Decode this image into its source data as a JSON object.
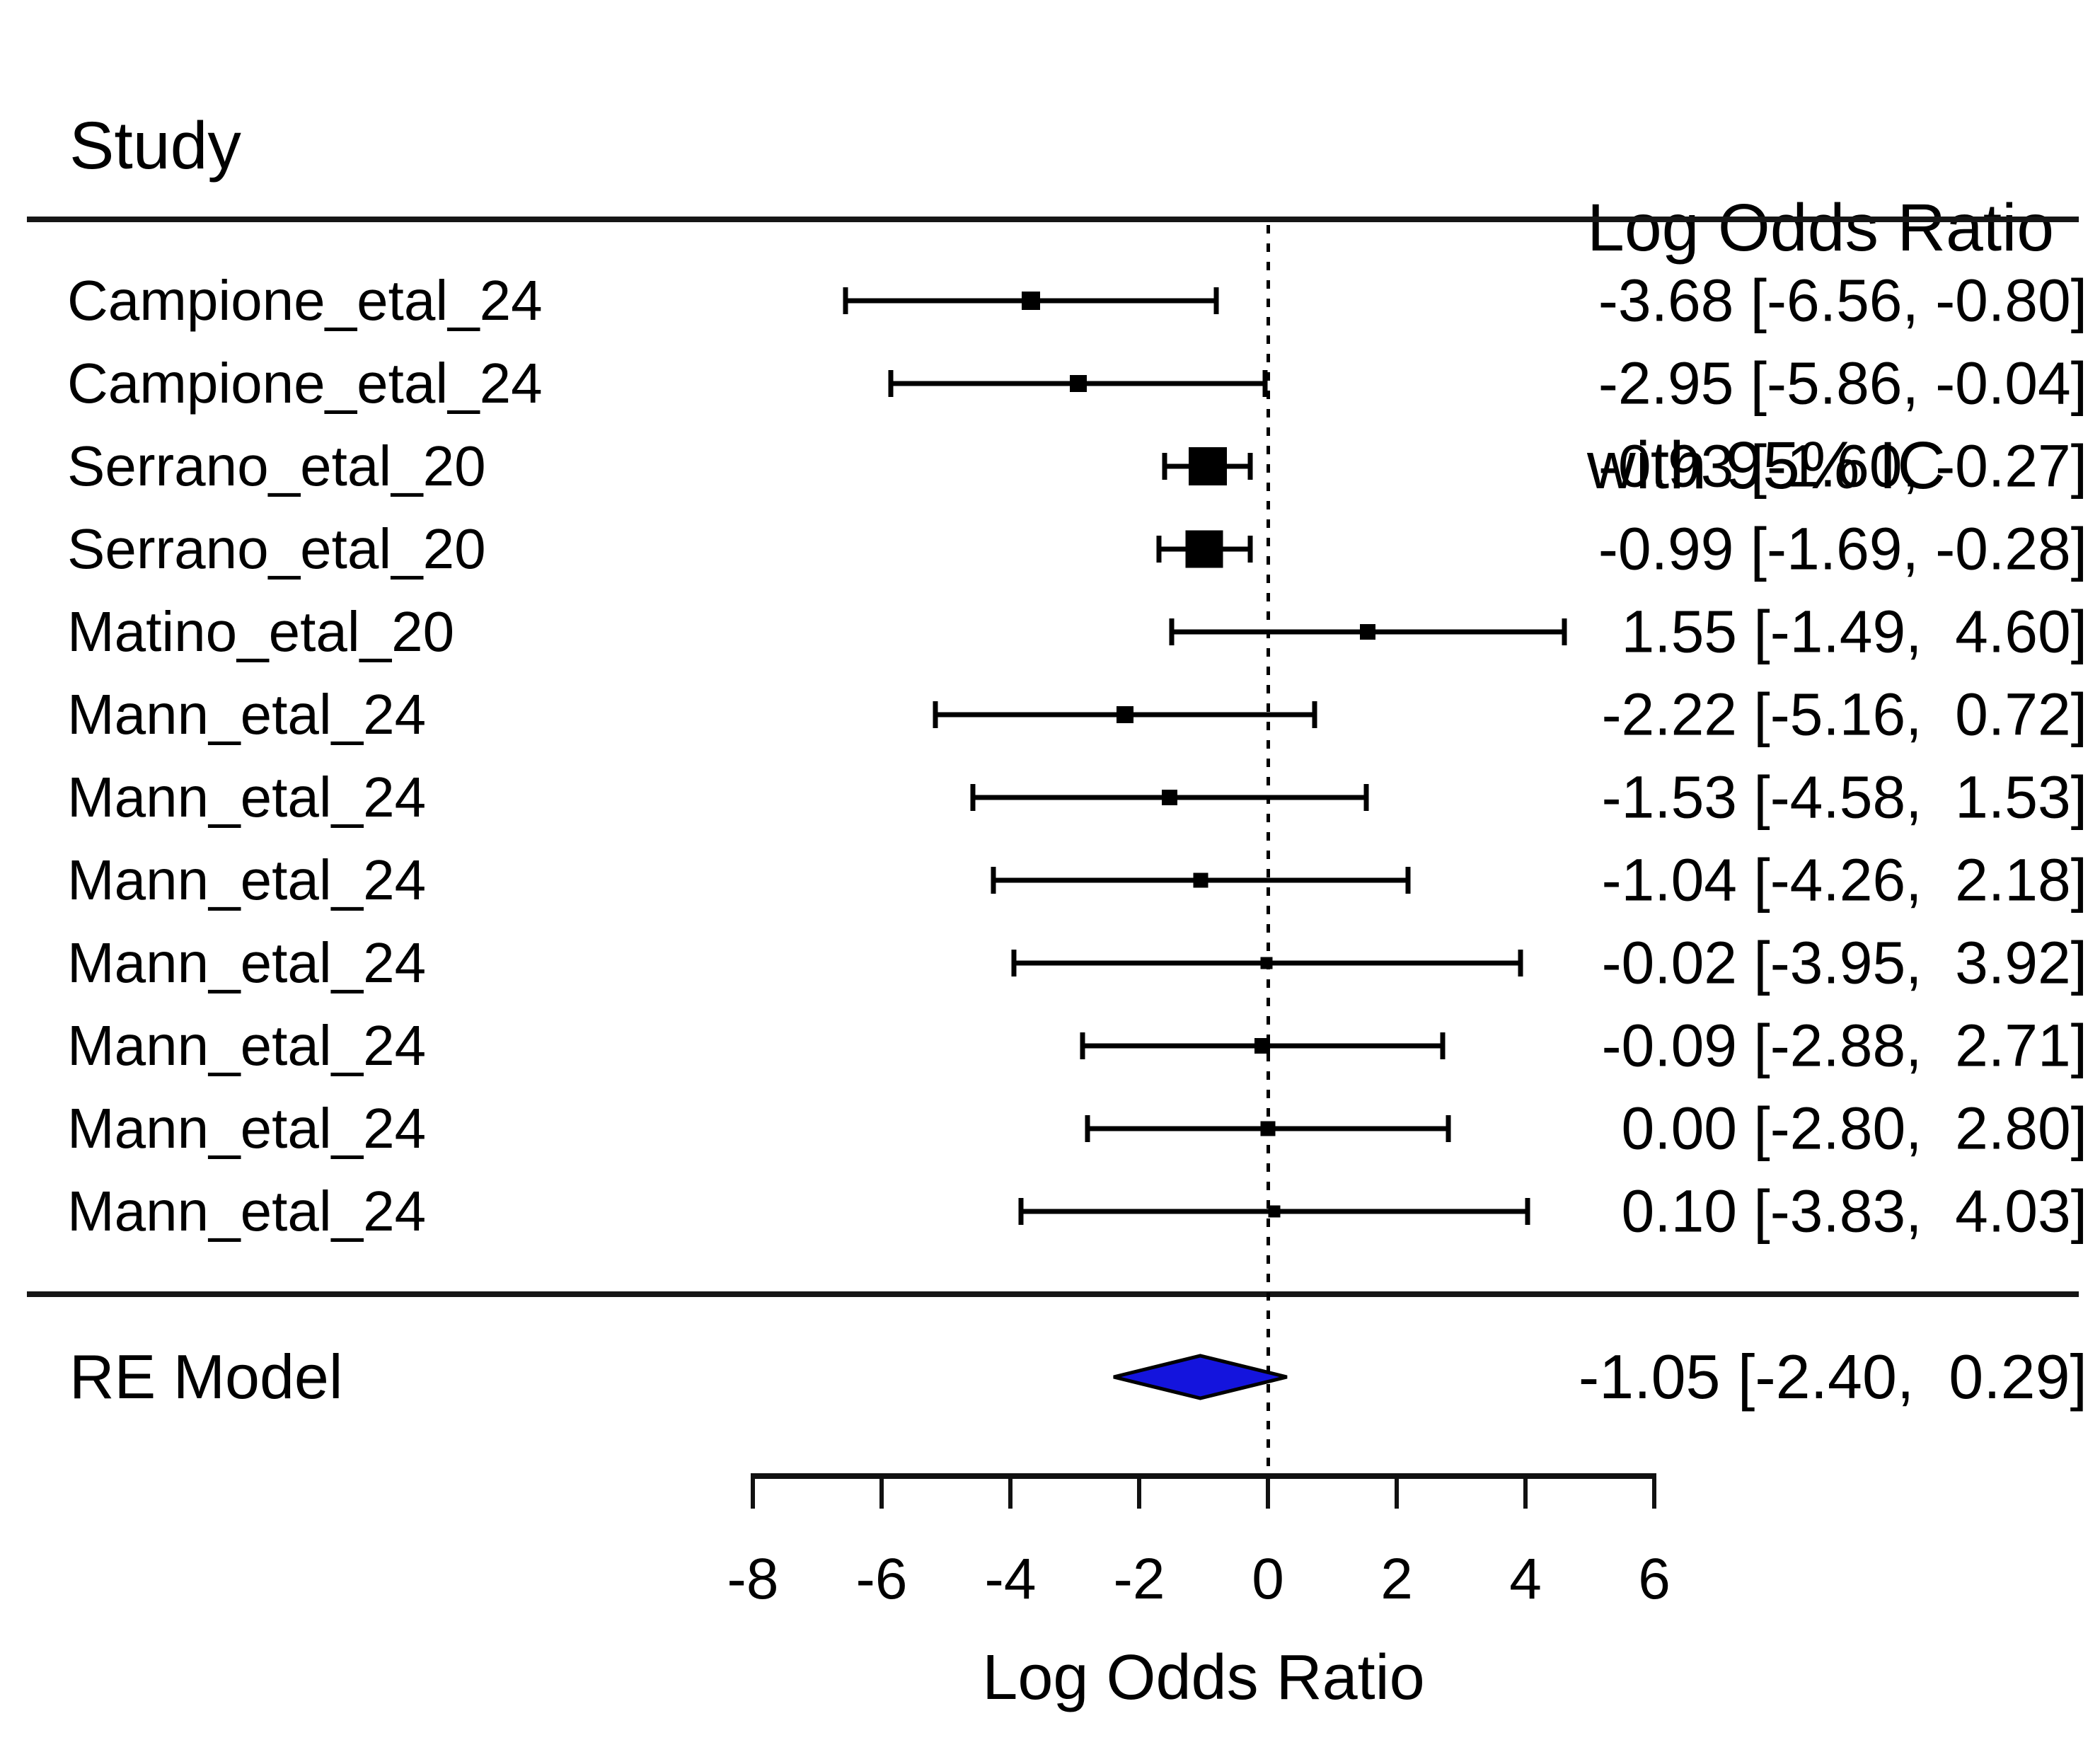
{
  "header": {
    "study_label": "Study",
    "effect_line1": "Log Odds Ratio",
    "effect_line2": "with 95% IC"
  },
  "colors": {
    "text": "#000000",
    "rule": "#161616",
    "marker": "#000000",
    "diamond_fill": "#1414dd",
    "diamond_border": "#000000"
  },
  "chart_data": {
    "type": "scatter",
    "variant": "forest-plot",
    "title": "",
    "xlabel": "Log Odds Ratio",
    "x_ticks": [
      -8,
      -6,
      -4,
      -2,
      0,
      2,
      4,
      6
    ],
    "x_tick_labels": [
      "-8",
      "-6",
      "-4",
      "-2",
      "0",
      "2",
      "4",
      "6"
    ],
    "xlim": [
      -8.8,
      6.6
    ],
    "reference_line_x": 0,
    "grid": false,
    "legend": "none",
    "studies": [
      {
        "label": "Campione_etal_24",
        "estimate": -3.68,
        "ci_lower": -6.56,
        "ci_upper": -0.8,
        "display": "-3.68 [-6.56, -0.80]",
        "marker_size": 26
      },
      {
        "label": "Campione_etal_24",
        "estimate": -2.95,
        "ci_lower": -5.86,
        "ci_upper": -0.04,
        "display": "-2.95 [-5.86, -0.04]",
        "marker_size": 24
      },
      {
        "label": "Serrano_etal_20",
        "estimate": -0.93,
        "ci_lower": -1.6,
        "ci_upper": -0.27,
        "display": "-0.93 [-1.60, -0.27]",
        "marker_size": 54
      },
      {
        "label": "Serrano_etal_20",
        "estimate": -0.99,
        "ci_lower": -1.69,
        "ci_upper": -0.28,
        "display": "-0.99 [-1.69, -0.28]",
        "marker_size": 53
      },
      {
        "label": "Matino_etal_20",
        "estimate": 1.55,
        "ci_lower": -1.49,
        "ci_upper": 4.6,
        "display": "1.55 [-1.49,  4.60]",
        "marker_size": 22
      },
      {
        "label": "Mann_etal_24",
        "estimate": -2.22,
        "ci_lower": -5.16,
        "ci_upper": 0.72,
        "display": "-2.22 [-5.16,  0.72]",
        "marker_size": 24
      },
      {
        "label": "Mann_etal_24",
        "estimate": -1.53,
        "ci_lower": -4.58,
        "ci_upper": 1.53,
        "display": "-1.53 [-4.58,  1.53]",
        "marker_size": 22
      },
      {
        "label": "Mann_etal_24",
        "estimate": -1.04,
        "ci_lower": -4.26,
        "ci_upper": 2.18,
        "display": "-1.04 [-4.26,  2.18]",
        "marker_size": 21
      },
      {
        "label": "Mann_etal_24",
        "estimate": -0.02,
        "ci_lower": -3.95,
        "ci_upper": 3.92,
        "display": "-0.02 [-3.95,  3.92]",
        "marker_size": 17
      },
      {
        "label": "Mann_etal_24",
        "estimate": -0.09,
        "ci_lower": -2.88,
        "ci_upper": 2.71,
        "display": "-0.09 [-2.88,  2.71]",
        "marker_size": 22
      },
      {
        "label": "Mann_etal_24",
        "estimate": 0.0,
        "ci_lower": -2.8,
        "ci_upper": 2.8,
        "display": "0.00 [-2.80,  2.80]",
        "marker_size": 21
      },
      {
        "label": "Mann_etal_24",
        "estimate": 0.1,
        "ci_lower": -3.83,
        "ci_upper": 4.03,
        "display": "0.10 [-3.83,  4.03]",
        "marker_size": 17
      }
    ],
    "summary": {
      "label": "RE Model",
      "estimate": -1.05,
      "ci_lower": -2.4,
      "ci_upper": 0.29,
      "display": "-1.05 [-2.40,  0.29]"
    }
  }
}
